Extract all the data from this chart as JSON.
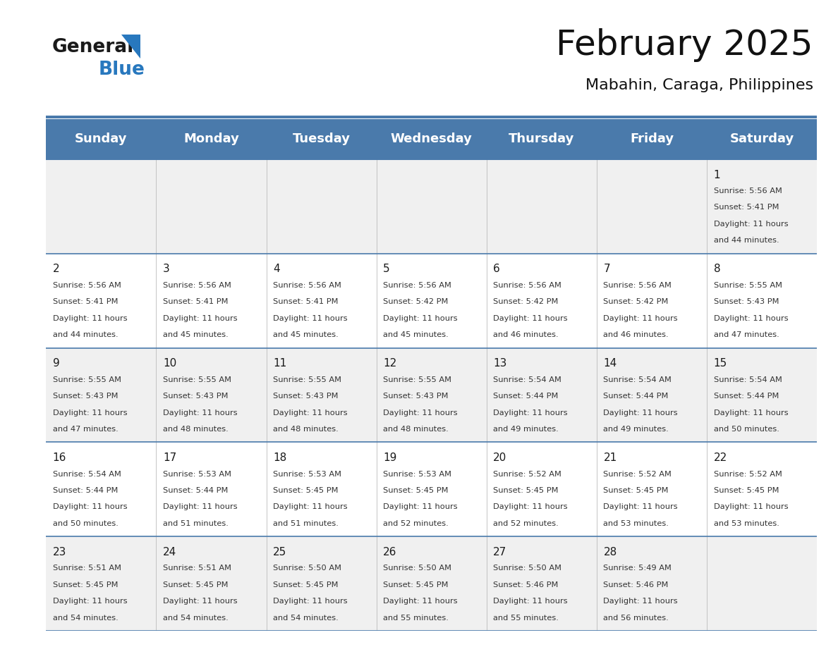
{
  "title": "February 2025",
  "subtitle": "Mabahin, Caraga, Philippines",
  "days_of_week": [
    "Sunday",
    "Monday",
    "Tuesday",
    "Wednesday",
    "Thursday",
    "Friday",
    "Saturday"
  ],
  "header_bg": "#4a7aab",
  "header_text": "#ffffff",
  "cell_bg_odd": "#f0f0f0",
  "cell_bg_even": "#ffffff",
  "border_color": "#4a7aab",
  "text_color": "#333333",
  "day_num_color": "#1a1a1a",
  "logo_color1": "#1a1a1a",
  "logo_color2": "#2878be",
  "calendar_data": [
    {
      "day": 1,
      "row": 0,
      "col": 6,
      "sunrise": "5:56 AM",
      "sunset": "5:41 PM",
      "daylight_min": "44"
    },
    {
      "day": 2,
      "row": 1,
      "col": 0,
      "sunrise": "5:56 AM",
      "sunset": "5:41 PM",
      "daylight_min": "44"
    },
    {
      "day": 3,
      "row": 1,
      "col": 1,
      "sunrise": "5:56 AM",
      "sunset": "5:41 PM",
      "daylight_min": "45"
    },
    {
      "day": 4,
      "row": 1,
      "col": 2,
      "sunrise": "5:56 AM",
      "sunset": "5:41 PM",
      "daylight_min": "45"
    },
    {
      "day": 5,
      "row": 1,
      "col": 3,
      "sunrise": "5:56 AM",
      "sunset": "5:42 PM",
      "daylight_min": "45"
    },
    {
      "day": 6,
      "row": 1,
      "col": 4,
      "sunrise": "5:56 AM",
      "sunset": "5:42 PM",
      "daylight_min": "46"
    },
    {
      "day": 7,
      "row": 1,
      "col": 5,
      "sunrise": "5:56 AM",
      "sunset": "5:42 PM",
      "daylight_min": "46"
    },
    {
      "day": 8,
      "row": 1,
      "col": 6,
      "sunrise": "5:55 AM",
      "sunset": "5:43 PM",
      "daylight_min": "47"
    },
    {
      "day": 9,
      "row": 2,
      "col": 0,
      "sunrise": "5:55 AM",
      "sunset": "5:43 PM",
      "daylight_min": "47"
    },
    {
      "day": 10,
      "row": 2,
      "col": 1,
      "sunrise": "5:55 AM",
      "sunset": "5:43 PM",
      "daylight_min": "48"
    },
    {
      "day": 11,
      "row": 2,
      "col": 2,
      "sunrise": "5:55 AM",
      "sunset": "5:43 PM",
      "daylight_min": "48"
    },
    {
      "day": 12,
      "row": 2,
      "col": 3,
      "sunrise": "5:55 AM",
      "sunset": "5:43 PM",
      "daylight_min": "48"
    },
    {
      "day": 13,
      "row": 2,
      "col": 4,
      "sunrise": "5:54 AM",
      "sunset": "5:44 PM",
      "daylight_min": "49"
    },
    {
      "day": 14,
      "row": 2,
      "col": 5,
      "sunrise": "5:54 AM",
      "sunset": "5:44 PM",
      "daylight_min": "49"
    },
    {
      "day": 15,
      "row": 2,
      "col": 6,
      "sunrise": "5:54 AM",
      "sunset": "5:44 PM",
      "daylight_min": "50"
    },
    {
      "day": 16,
      "row": 3,
      "col": 0,
      "sunrise": "5:54 AM",
      "sunset": "5:44 PM",
      "daylight_min": "50"
    },
    {
      "day": 17,
      "row": 3,
      "col": 1,
      "sunrise": "5:53 AM",
      "sunset": "5:44 PM",
      "daylight_min": "51"
    },
    {
      "day": 18,
      "row": 3,
      "col": 2,
      "sunrise": "5:53 AM",
      "sunset": "5:45 PM",
      "daylight_min": "51"
    },
    {
      "day": 19,
      "row": 3,
      "col": 3,
      "sunrise": "5:53 AM",
      "sunset": "5:45 PM",
      "daylight_min": "52"
    },
    {
      "day": 20,
      "row": 3,
      "col": 4,
      "sunrise": "5:52 AM",
      "sunset": "5:45 PM",
      "daylight_min": "52"
    },
    {
      "day": 21,
      "row": 3,
      "col": 5,
      "sunrise": "5:52 AM",
      "sunset": "5:45 PM",
      "daylight_min": "53"
    },
    {
      "day": 22,
      "row": 3,
      "col": 6,
      "sunrise": "5:52 AM",
      "sunset": "5:45 PM",
      "daylight_min": "53"
    },
    {
      "day": 23,
      "row": 4,
      "col": 0,
      "sunrise": "5:51 AM",
      "sunset": "5:45 PM",
      "daylight_min": "54"
    },
    {
      "day": 24,
      "row": 4,
      "col": 1,
      "sunrise": "5:51 AM",
      "sunset": "5:45 PM",
      "daylight_min": "54"
    },
    {
      "day": 25,
      "row": 4,
      "col": 2,
      "sunrise": "5:50 AM",
      "sunset": "5:45 PM",
      "daylight_min": "54"
    },
    {
      "day": 26,
      "row": 4,
      "col": 3,
      "sunrise": "5:50 AM",
      "sunset": "5:45 PM",
      "daylight_min": "55"
    },
    {
      "day": 27,
      "row": 4,
      "col": 4,
      "sunrise": "5:50 AM",
      "sunset": "5:46 PM",
      "daylight_min": "55"
    },
    {
      "day": 28,
      "row": 4,
      "col": 5,
      "sunrise": "5:49 AM",
      "sunset": "5:46 PM",
      "daylight_min": "56"
    }
  ],
  "num_rows": 5,
  "n_cols": 7,
  "figsize": [
    11.88,
    9.18
  ]
}
